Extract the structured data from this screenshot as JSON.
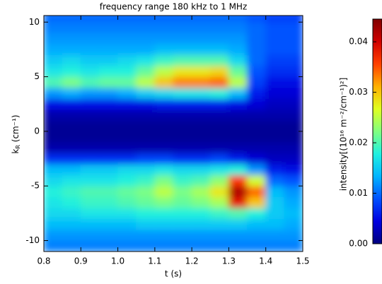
{
  "chart_data": {
    "type": "heatmap",
    "title": "frequency range 180 kHz to 1 MHz",
    "xlabel": "t (s)",
    "ylabel": {
      "base": "k",
      "sub": "R",
      "rest": " (cm⁻¹)"
    },
    "colorbar_label": "intensity[(10¹⁶ m⁻²/cm⁻¹)²]",
    "x_edges": [
      0.8,
      0.85,
      0.9,
      0.95,
      1.0,
      1.05,
      1.1,
      1.15,
      1.2,
      1.25,
      1.3,
      1.35,
      1.4,
      1.45,
      1.5
    ],
    "y_edges": [
      -11,
      -10,
      -9,
      -8,
      -7,
      -6,
      -5,
      -4,
      -3,
      -2,
      -1,
      0,
      1,
      2,
      3,
      4,
      5,
      6,
      7,
      8,
      9,
      10,
      11
    ],
    "z": [
      [
        0.011,
        0.011,
        0.011,
        0.011,
        0.011,
        0.011,
        0.011,
        0.011,
        0.011,
        0.011,
        0.011,
        0.011,
        0.011,
        0.011
      ],
      [
        0.012,
        0.012,
        0.012,
        0.012,
        0.012,
        0.012,
        0.012,
        0.012,
        0.012,
        0.012,
        0.012,
        0.012,
        0.012,
        0.012
      ],
      [
        0.014,
        0.014,
        0.014,
        0.014,
        0.014,
        0.015,
        0.015,
        0.015,
        0.015,
        0.015,
        0.015,
        0.014,
        0.014,
        0.013
      ],
      [
        0.016,
        0.016,
        0.017,
        0.017,
        0.017,
        0.018,
        0.018,
        0.018,
        0.018,
        0.019,
        0.02,
        0.018,
        0.015,
        0.014
      ],
      [
        0.017,
        0.018,
        0.019,
        0.019,
        0.02,
        0.021,
        0.022,
        0.021,
        0.022,
        0.024,
        0.038,
        0.03,
        0.015,
        0.013
      ],
      [
        0.018,
        0.019,
        0.02,
        0.02,
        0.021,
        0.022,
        0.025,
        0.022,
        0.024,
        0.028,
        0.042,
        0.034,
        0.014,
        0.012
      ],
      [
        0.016,
        0.017,
        0.017,
        0.017,
        0.018,
        0.019,
        0.022,
        0.019,
        0.02,
        0.023,
        0.036,
        0.026,
        0.01,
        0.009
      ],
      [
        0.014,
        0.014,
        0.015,
        0.015,
        0.016,
        0.016,
        0.017,
        0.016,
        0.016,
        0.017,
        0.018,
        0.012,
        0.006,
        0.005
      ],
      [
        0.007,
        0.007,
        0.007,
        0.007,
        0.007,
        0.008,
        0.008,
        0.007,
        0.007,
        0.008,
        0.006,
        0.004,
        0.003,
        0.003
      ],
      [
        0.002,
        0.002,
        0.002,
        0.002,
        0.002,
        0.002,
        0.002,
        0.002,
        0.002,
        0.002,
        0.002,
        0.002,
        0.002,
        0.002
      ],
      [
        0.001,
        0.001,
        0.001,
        0.001,
        0.001,
        0.001,
        0.001,
        0.001,
        0.001,
        0.001,
        0.001,
        0.001,
        0.001,
        0.001
      ],
      [
        0.001,
        0.001,
        0.001,
        0.001,
        0.001,
        0.001,
        0.001,
        0.001,
        0.001,
        0.001,
        0.001,
        0.001,
        0.001,
        0.001
      ],
      [
        0.002,
        0.002,
        0.002,
        0.002,
        0.002,
        0.002,
        0.002,
        0.002,
        0.002,
        0.002,
        0.002,
        0.002,
        0.002,
        0.002
      ],
      [
        0.005,
        0.005,
        0.005,
        0.005,
        0.005,
        0.005,
        0.006,
        0.006,
        0.006,
        0.006,
        0.005,
        0.004,
        0.003,
        0.003
      ],
      [
        0.012,
        0.013,
        0.012,
        0.012,
        0.013,
        0.015,
        0.016,
        0.017,
        0.017,
        0.018,
        0.014,
        0.006,
        0.004,
        0.004
      ],
      [
        0.02,
        0.022,
        0.02,
        0.021,
        0.021,
        0.025,
        0.03,
        0.033,
        0.033,
        0.034,
        0.025,
        0.008,
        0.005,
        0.005
      ],
      [
        0.017,
        0.018,
        0.017,
        0.018,
        0.018,
        0.021,
        0.025,
        0.028,
        0.028,
        0.029,
        0.021,
        0.009,
        0.007,
        0.007
      ],
      [
        0.015,
        0.016,
        0.015,
        0.015,
        0.016,
        0.017,
        0.019,
        0.02,
        0.02,
        0.02,
        0.016,
        0.01,
        0.008,
        0.008
      ],
      [
        0.013,
        0.013,
        0.013,
        0.013,
        0.013,
        0.013,
        0.014,
        0.014,
        0.014,
        0.014,
        0.013,
        0.01,
        0.009,
        0.009
      ],
      [
        0.012,
        0.012,
        0.012,
        0.012,
        0.012,
        0.012,
        0.012,
        0.012,
        0.012,
        0.012,
        0.012,
        0.01,
        0.009,
        0.009
      ],
      [
        0.011,
        0.011,
        0.011,
        0.011,
        0.011,
        0.011,
        0.011,
        0.011,
        0.011,
        0.011,
        0.011,
        0.01,
        0.009,
        0.009
      ],
      [
        0.01,
        0.01,
        0.01,
        0.01,
        0.01,
        0.01,
        0.01,
        0.01,
        0.01,
        0.01,
        0.01,
        0.009,
        0.008,
        0.008
      ]
    ],
    "xlim": [
      0.8,
      1.5
    ],
    "xticks": [
      0.8,
      0.9,
      {
        "value": 1,
        "label": "1.0"
      },
      1.1,
      1.2,
      1.3,
      1.4,
      1.5
    ],
    "ylim": [
      -11,
      10.6
    ],
    "yticks": [
      -10,
      -5,
      0,
      5,
      10
    ],
    "zlim": [
      0,
      0.0445
    ],
    "zticks": [
      {
        "value": 0,
        "label": "0.00"
      },
      0.01,
      0.02,
      0.03,
      0.04
    ],
    "colormap": [
      "#00007f",
      "#0000e0",
      "#0050ff",
      "#00b4ff",
      "#20f0e0",
      "#80ff80",
      "#e0ff20",
      "#ffb000",
      "#ff4000",
      "#d00000",
      "#800000"
    ]
  }
}
